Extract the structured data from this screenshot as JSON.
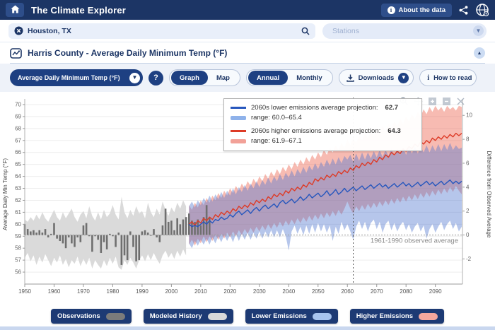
{
  "header": {
    "app_title": "The Climate Explorer",
    "about_button": "About the data"
  },
  "search": {
    "location_value": "Houston, TX",
    "stations_placeholder": "Stations"
  },
  "panel": {
    "title": "Harris County - Average Daily Minimum Temp (°F)"
  },
  "controls": {
    "variable_selected": "Average Daily Minimum Temp (°F)",
    "help_label": "?",
    "view_toggle": {
      "graph": "Graph",
      "map": "Map"
    },
    "period_toggle": {
      "annual": "Annual",
      "monthly": "Monthly"
    },
    "downloads_label": "Downloads",
    "how_to_read_label": "How to read",
    "info_glyph": "i"
  },
  "tooltip": {
    "lower_label": "2060s lower emissions average projection:",
    "lower_value": "62.7",
    "lower_range": "range: 60.0–65.4",
    "higher_label": "2060s higher emissions average projection:",
    "higher_value": "64.3",
    "higher_range": "range: 61.9–67.1"
  },
  "legend": {
    "items": [
      {
        "label": "Observations",
        "color": "#7b7b7b"
      },
      {
        "label": "Modeled History",
        "color": "#d9d9d9"
      },
      {
        "label": "Lower Emissions",
        "color": "#a6c3ee"
      },
      {
        "label": "Higher Emissions",
        "color": "#f5a79d"
      }
    ]
  },
  "toolbar_icons": [
    "zoom-icon",
    "pan-icon",
    "zoom-in-icon",
    "zoom-out-icon",
    "reset-icon"
  ],
  "chart_data": {
    "type": "area",
    "title": "Harris County - Average Daily Minimum Temp (°F)",
    "ylabel_left": "Average Daily Min Temp (°F)",
    "ylabel_right": "Difference from Observed Average",
    "x_ticks": [
      1950,
      1960,
      1970,
      1980,
      1990,
      2000,
      2010,
      2020,
      2030,
      2040,
      2050,
      2060,
      2070,
      2080,
      2090
    ],
    "xlim": [
      1950,
      2099
    ],
    "ylim_left": [
      55.2,
      70.6
    ],
    "y_ticks_left": [
      56,
      57,
      58,
      59,
      60,
      61,
      62,
      63,
      64,
      65,
      66,
      67,
      68,
      69,
      70
    ],
    "y_ticks_right": [
      -2,
      0,
      2,
      4,
      6,
      8,
      10
    ],
    "observed_average": 59.1,
    "observed_average_label": "1961-1990 observed average",
    "threshold_year": 2062,
    "grid": true,
    "colors": {
      "observations": "#6f6f6f",
      "modeled": "#d8d8d8",
      "lower_line": "#2757bd",
      "lower_band": "#5077d0",
      "higher_line": "#dd3b27",
      "higher_band": "#eb5c48",
      "baseline": "#9a9a9a",
      "threshold": "#555555"
    },
    "observations": {
      "start_year": 1950,
      "values": [
        60.0,
        59.6,
        59.4,
        59.5,
        59.3,
        59.5,
        59.3,
        59.6,
        58.9,
        59.2,
        60.1,
        58.8,
        58.6,
        58.4,
        58.0,
        58.9,
        58.4,
        58.1,
        58.9,
        58.5,
        59.9,
        60.1,
        59.0,
        57.7,
        59.0,
        58.7,
        57.6,
        58.5,
        57.9,
        59.2,
        59.0,
        58.1,
        59.3,
        56.6,
        57.4,
        57.0,
        59.4,
        58.1,
        56.9,
        57.0,
        59.4,
        59.5,
        59.3,
        59.1,
        59.6,
        58.9,
        58.5,
        59.9,
        61.3,
        60.2,
        60.3,
        59.5,
        60.5,
        60.0,
        60.4,
        60.6,
        60.9,
        60.3,
        60.2,
        60.4,
        59.9,
        60.6,
        61.6,
        60.6
      ]
    },
    "modeled_history": {
      "start_year": 1950,
      "high": [
        60.4,
        60.2,
        60.6,
        60.3,
        60.8,
        60.4,
        61.0,
        60.5,
        60.2,
        60.7,
        61.2,
        60.6,
        60.3,
        61.0,
        60.5,
        60.9,
        61.3,
        60.6,
        60.2,
        60.8,
        61.1,
        60.5,
        61.5,
        60.7,
        60.3,
        61.0,
        60.4,
        61.2,
        60.6,
        60.9,
        61.6,
        60.8,
        60.4,
        62.3,
        61.0,
        60.5,
        61.2,
        60.7,
        61.5,
        60.9,
        61.1,
        60.5,
        61.8,
        61.0,
        60.6,
        61.3,
        60.8,
        61.9,
        61.2,
        60.7,
        61.4,
        61.0,
        61.8,
        61.3,
        62.0,
        61.5
      ],
      "low": [
        57.2,
        57.6,
        56.9,
        57.4,
        56.6,
        57.3,
        56.8,
        57.5,
        57.0,
        56.5,
        57.2,
        56.8,
        57.4,
        56.6,
        57.1,
        56.4,
        57.0,
        56.7,
        57.3,
        56.5,
        57.1,
        56.6,
        57.2,
        56.3,
        57.0,
        56.6,
        56.3,
        57.0,
        56.5,
        57.2,
        56.7,
        57.3,
        56.4,
        56.2,
        57.0,
        56.6,
        57.2,
        56.8,
        56.3,
        57.0,
        57.4,
        56.9,
        57.5,
        57.0,
        57.6,
        57.1,
        56.7,
        57.4,
        57.8,
        57.2,
        57.6,
        57.1,
        57.8,
        57.3,
        57.9,
        57.4
      ]
    },
    "lower_emissions": {
      "start_year": 2006,
      "median": [
        60.0,
        59.8,
        59.9,
        59.8,
        60.0,
        60.2,
        60.0,
        60.3,
        60.1,
        60.4,
        60.3,
        60.6,
        60.4,
        60.5,
        60.8,
        60.6,
        60.9,
        61.1,
        60.8,
        61.0,
        61.2,
        60.9,
        61.2,
        61.4,
        61.1,
        61.4,
        61.6,
        61.3,
        61.5,
        61.7,
        61.4,
        61.8,
        62.0,
        61.7,
        61.9,
        62.1,
        61.8,
        62.0,
        62.3,
        62.0,
        62.2,
        62.5,
        62.2,
        62.4,
        62.6,
        62.3,
        62.5,
        62.8,
        62.4,
        62.6,
        62.9,
        62.5,
        62.7,
        63.0,
        62.7,
        62.9,
        63.1,
        62.8,
        63.0,
        63.2,
        62.9,
        63.1,
        63.3,
        63.0,
        63.2,
        63.4,
        63.1,
        63.3,
        63.0,
        63.2,
        63.4,
        63.1,
        63.3,
        63.5,
        63.2,
        63.4,
        63.1,
        63.3,
        63.5,
        63.2,
        63.4,
        63.6,
        63.3,
        63.5,
        63.2,
        63.4,
        63.6,
        63.3,
        63.5,
        63.7,
        63.4,
        63.6,
        63.4,
        63.6
      ],
      "low": [
        58.4,
        58.0,
        58.6,
        58.2,
        58.7,
        58.3,
        58.8,
        58.3,
        58.9,
        58.4,
        59.0,
        58.5,
        59.1,
        58.6,
        59.1,
        58.5,
        59.2,
        58.6,
        59.2,
        58.7,
        59.3,
        58.7,
        59.3,
        58.8,
        59.4,
        58.8,
        59.4,
        58.9,
        59.5,
        58.9,
        59.5,
        58.9,
        59.6,
        59.0,
        57.8,
        59.4,
        59.9,
        59.2,
        59.8,
        59.1,
        59.9,
        59.2,
        60.0,
        59.3,
        60.1,
        59.4,
        60.0,
        59.3,
        59.9,
        58.6,
        59.8,
        59.2,
        60.2,
        59.5,
        60.0,
        59.4,
        58.7,
        59.8,
        60.3,
        59.6,
        60.2,
        59.4,
        60.1,
        60.4,
        59.6,
        60.2,
        59.3,
        60.0,
        60.3,
        59.5,
        60.1,
        59.4,
        59.9,
        60.2,
        59.5,
        60.0,
        59.3,
        59.8,
        60.1,
        59.4,
        59.9,
        58.8,
        59.6,
        60.0,
        59.3,
        59.8,
        60.2,
        59.5,
        60.0,
        60.3,
        59.6,
        60.1,
        59.4,
        59.8
      ],
      "high": [
        61.5,
        61.9,
        61.4,
        62.0,
        61.6,
        62.2,
        61.8,
        62.4,
        61.9,
        62.5,
        62.1,
        62.7,
        62.2,
        62.8,
        62.4,
        63.0,
        62.5,
        63.1,
        62.7,
        63.3,
        62.8,
        63.4,
        63.0,
        63.6,
        63.1,
        63.7,
        63.3,
        63.9,
        63.4,
        64.0,
        63.6,
        64.2,
        63.7,
        64.3,
        63.9,
        64.5,
        64.0,
        64.6,
        64.2,
        64.8,
        64.3,
        64.9,
        64.5,
        65.1,
        64.6,
        65.2,
        64.8,
        65.4,
        64.9,
        65.5,
        65.0,
        65.6,
        65.1,
        65.7,
        65.4,
        65.8,
        65.2,
        65.9,
        65.3,
        66.0,
        65.4,
        66.0,
        65.5,
        66.1,
        65.6,
        66.2,
        65.6,
        66.2,
        65.7,
        66.3,
        65.7,
        66.3,
        65.8,
        66.4,
        65.8,
        66.4,
        65.9,
        66.5,
        65.9,
        66.5,
        66.0,
        66.6,
        66.0,
        66.6,
        66.1,
        66.7,
        66.1,
        66.7,
        66.2,
        66.8,
        66.2,
        66.6,
        66.3,
        66.4
      ]
    },
    "higher_emissions": {
      "start_year": 2006,
      "median": [
        60.0,
        60.2,
        59.9,
        60.3,
        60.1,
        60.5,
        60.3,
        60.6,
        60.4,
        60.8,
        60.6,
        61.0,
        60.8,
        61.1,
        60.9,
        61.3,
        61.1,
        61.5,
        61.3,
        61.6,
        61.4,
        61.8,
        61.6,
        62.0,
        61.8,
        62.1,
        61.9,
        62.3,
        62.1,
        62.5,
        62.3,
        62.6,
        62.4,
        62.8,
        62.6,
        63.0,
        62.8,
        63.1,
        62.9,
        63.3,
        63.1,
        63.5,
        63.3,
        63.8,
        63.6,
        63.9,
        63.7,
        64.1,
        63.9,
        64.2,
        64.0,
        64.4,
        64.2,
        64.5,
        64.3,
        64.7,
        64.5,
        64.9,
        64.7,
        65.1,
        64.9,
        65.2,
        65.0,
        65.4,
        65.2,
        65.6,
        65.4,
        65.8,
        65.6,
        66.0,
        65.8,
        66.1,
        65.9,
        66.3,
        66.1,
        66.5,
        66.3,
        66.7,
        66.5,
        66.9,
        66.7,
        67.0,
        66.8,
        67.2,
        67.0,
        67.3,
        67.1,
        67.4,
        67.2,
        67.5,
        67.3,
        67.6,
        67.4,
        67.6
      ],
      "low": [
        58.3,
        58.7,
        58.2,
        58.8,
        58.4,
        59.0,
        58.5,
        59.0,
        58.6,
        59.1,
        58.7,
        59.2,
        58.8,
        59.3,
        58.9,
        59.4,
        59.0,
        59.5,
        59.1,
        59.6,
        59.2,
        59.7,
        59.3,
        59.8,
        59.4,
        59.9,
        59.5,
        60.0,
        59.6,
        60.1,
        59.7,
        60.2,
        59.8,
        60.3,
        59.9,
        60.4,
        60.0,
        60.5,
        60.1,
        60.6,
        60.2,
        60.7,
        60.3,
        60.8,
        60.4,
        60.9,
        60.5,
        61.0,
        60.6,
        61.1,
        60.7,
        61.2,
        60.8,
        61.3,
        61.9,
        61.3,
        60.9,
        61.5,
        61.1,
        61.6,
        61.2,
        61.7,
        61.3,
        61.8,
        61.4,
        61.9,
        61.5,
        62.0,
        61.6,
        62.1,
        61.7,
        62.2,
        61.8,
        62.3,
        61.9,
        62.4,
        62.0,
        62.5,
        62.1,
        62.6,
        62.2,
        62.7,
        62.3,
        62.8,
        62.4,
        62.9,
        62.5,
        63.0,
        62.6,
        63.1,
        62.7,
        63.2,
        62.8,
        62.5
      ],
      "high": [
        61.6,
        61.2,
        61.8,
        61.4,
        62.0,
        61.6,
        62.2,
        61.8,
        62.4,
        62.0,
        62.6,
        62.2,
        62.8,
        62.4,
        63.0,
        62.6,
        63.2,
        62.8,
        63.4,
        63.0,
        63.6,
        63.2,
        63.8,
        63.4,
        64.0,
        63.6,
        64.2,
        63.8,
        64.4,
        64.0,
        64.6,
        64.2,
        64.8,
        64.4,
        65.0,
        64.6,
        65.2,
        64.8,
        65.4,
        65.0,
        65.6,
        65.2,
        65.8,
        65.4,
        66.0,
        65.6,
        66.2,
        65.8,
        66.4,
        66.0,
        66.6,
        66.2,
        66.8,
        66.4,
        67.1,
        66.6,
        67.2,
        66.8,
        67.4,
        67.0,
        67.6,
        67.2,
        67.8,
        67.4,
        68.0,
        67.6,
        68.2,
        67.8,
        68.4,
        68.0,
        68.6,
        68.2,
        68.8,
        68.4,
        69.0,
        68.6,
        69.2,
        68.8,
        69.4,
        69.0,
        69.6,
        69.2,
        69.8,
        69.4,
        69.9,
        69.5,
        69.8,
        69.4,
        69.9,
        69.6,
        69.8,
        69.5,
        69.9,
        69.8
      ]
    }
  }
}
